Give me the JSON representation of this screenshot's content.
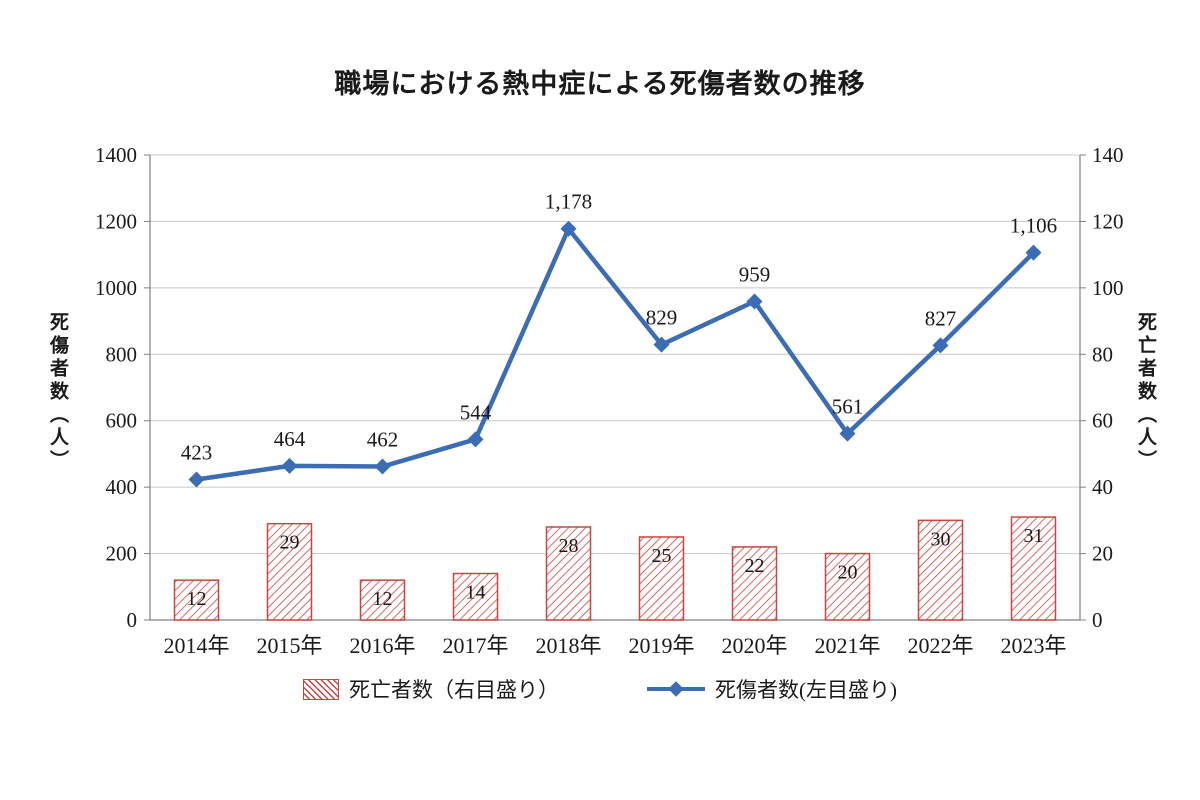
{
  "title": "職場における熱中症による死傷者数の推移",
  "left_axis_label": "死傷者数（人）",
  "right_axis_label": "死亡者数（人）",
  "legend": {
    "deaths": "死亡者数（右目盛り）",
    "casualties": "死傷者数(左目盛り)"
  },
  "colors": {
    "line": "#3c6cb4",
    "bar": "#c9453f",
    "grid": "#c8c8c8",
    "axis": "#808080",
    "text": "#1a1a1a"
  },
  "chart_data": {
    "type": "combo",
    "title": "職場における熱中症による死傷者数の推移",
    "categories": [
      "2014年",
      "2015年",
      "2016年",
      "2017年",
      "2018年",
      "2019年",
      "2020年",
      "2021年",
      "2022年",
      "2023年"
    ],
    "series": [
      {
        "name": "死亡者数（右目盛り）",
        "type": "bar",
        "axis": "right",
        "values": [
          12,
          29,
          12,
          14,
          28,
          25,
          22,
          20,
          30,
          31
        ]
      },
      {
        "name": "死傷者数(左目盛り)",
        "type": "line",
        "axis": "left",
        "values": [
          423,
          464,
          462,
          544,
          1178,
          829,
          959,
          561,
          827,
          1106
        ]
      }
    ],
    "left_axis": {
      "min": 0,
      "max": 1400,
      "step": 200,
      "label": "死傷者数（人）"
    },
    "right_axis": {
      "min": 0,
      "max": 140,
      "step": 20,
      "label": "死亡者数（人）"
    },
    "legend_position": "bottom",
    "grid": true
  }
}
